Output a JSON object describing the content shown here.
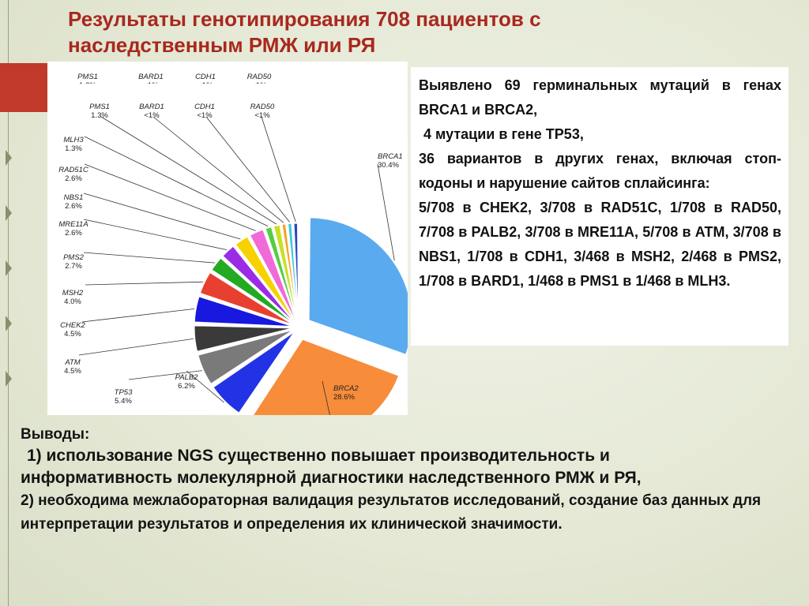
{
  "slide": {
    "title": "Результаты генотипирования 708 пациентов с наследственным РМЖ или РЯ"
  },
  "info": {
    "line1": "Выявлено 69 герминальных мутаций в генах BRCA1 и BRCA2,",
    "line2": "4 мутации в гене TP53,",
    "line3": "36 вариантов в других генах, включая стоп-кодоны и нарушение сайтов сплайсинга:",
    "line4": "5/708  в CHEK2, 3/708 в RAD51C, 1/708 в RAD50, 7/708  в PALB2, 3/708 в MRE11A, 5/708 в ATM, 3/708 в NBS1, 1/708 в CDH1, 3/468 в MSH2, 2/468  в PMS2, 1/708 в BARD1, 1/468 в PMS1 в 1/468 в MLH3."
  },
  "conclusions": {
    "heading": "Выводы:",
    "item1a": "1) использование NGS существенно  повышает производительность и",
    "item1b": "информативность молекулярной диагностики наследственного РМЖ и РЯ,",
    "item2": "2) необходима межлабораторная валидация результатов исследований, создание баз данных для интерпретации результатов и определения  их клинической значимости."
  },
  "colors": {
    "title": "#a8281f",
    "accent_bar": "#c0392b"
  },
  "chart_data": {
    "type": "pie",
    "slices": [
      {
        "name": "BRCA1",
        "value_label": "30.4%",
        "value": 30.4,
        "color": "#5aaaf0"
      },
      {
        "name": "BRCA2",
        "value_label": "28.6%",
        "value": 28.6,
        "color": "#f78c3a"
      },
      {
        "name": "PALB2",
        "value_label": "6.2%",
        "value": 6.2,
        "color": "#2233e6"
      },
      {
        "name": "TP53",
        "value_label": "5.4%",
        "value": 5.4,
        "color": "#7a7a7a"
      },
      {
        "name": "ATM",
        "value_label": "4.5%",
        "value": 4.5,
        "color": "#3a3a3a"
      },
      {
        "name": "CHEK2",
        "value_label": "4.5%",
        "value": 4.5,
        "color": "#1818e0"
      },
      {
        "name": "MSH2",
        "value_label": "4.0%",
        "value": 4.0,
        "color": "#e84030"
      },
      {
        "name": "PMS2",
        "value_label": "2.7%",
        "value": 2.7,
        "color": "#22aa22"
      },
      {
        "name": "MRE11A",
        "value_label": "2.6%",
        "value": 2.6,
        "color": "#9b2ce6"
      },
      {
        "name": "NBS1",
        "value_label": "2.6%",
        "value": 2.6,
        "color": "#f5d200"
      },
      {
        "name": "RAD51C",
        "value_label": "2.6%",
        "value": 2.6,
        "color": "#f06ad8"
      },
      {
        "name": "MLH3",
        "value_label": "1.3%",
        "value": 1.3,
        "color": "#55cc44"
      },
      {
        "name": "PMS1",
        "value_label": "1.3%",
        "value": 1.3,
        "color": "#c8e020"
      },
      {
        "name": "BARD1",
        "value_label": "<1%",
        "value": 0.9,
        "color": "#f8a020"
      },
      {
        "name": "CDH1",
        "value_label": "<1%",
        "value": 0.9,
        "color": "#40c8e0"
      },
      {
        "name": "RAD50",
        "value_label": "<1%",
        "value": 0.9,
        "color": "#2848c8"
      }
    ],
    "cut_labels": [
      {
        "name": "PMS1",
        "value_label": "1.3%"
      },
      {
        "name": "BARD1",
        "value_label": "<1%"
      },
      {
        "name": "CDH1",
        "value_label": "<1%"
      },
      {
        "name": "RAD50",
        "value_label": "<1%"
      }
    ]
  }
}
